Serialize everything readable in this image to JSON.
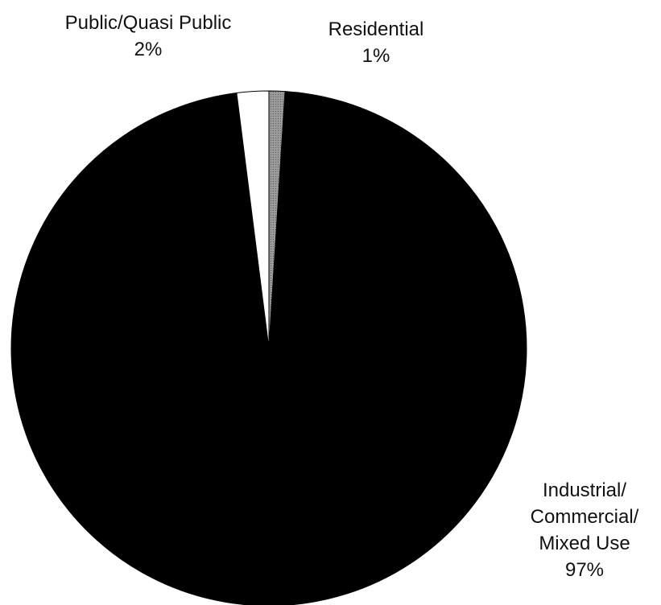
{
  "chart_data": {
    "type": "pie",
    "title": "",
    "legend": "none",
    "slices": [
      {
        "label_lines": [
          "Industrial/",
          "Commercial/",
          "Mixed Use"
        ],
        "percent_label": "97%",
        "value": 97,
        "color": "#000000"
      },
      {
        "label_lines": [
          "Public/Quasi Public"
        ],
        "percent_label": "2%",
        "value": 2,
        "color": "#ffffff"
      },
      {
        "label_lines": [
          "Residential"
        ],
        "percent_label": "1%",
        "value": 1,
        "color": "#8c8c8c"
      }
    ]
  }
}
